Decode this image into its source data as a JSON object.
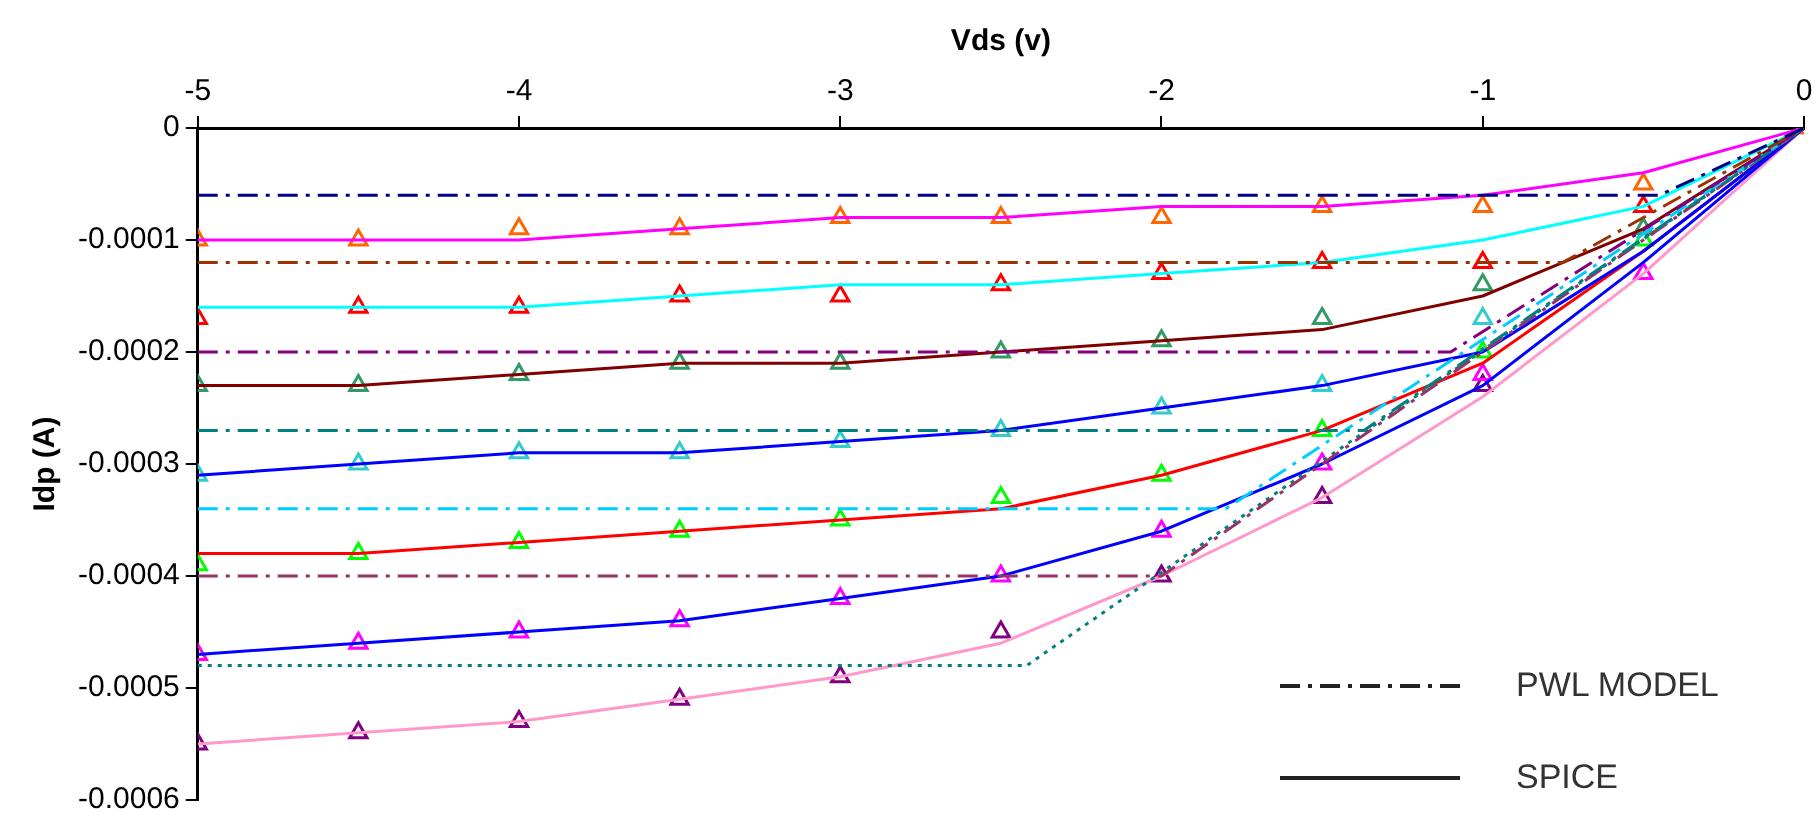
{
  "chart_data": {
    "type": "line",
    "xlabel": "Vds (v)",
    "ylabel": "Idp (A)",
    "xlim": [
      -5,
      0
    ],
    "xticks": [
      -5,
      -4,
      -3,
      -2,
      -1,
      0
    ],
    "ylim": [
      -0.0006,
      0
    ],
    "yticks": [
      0,
      -0.0001,
      -0.0002,
      -0.0003,
      -0.0004,
      -0.0005,
      -0.0006
    ],
    "grid": false,
    "annotations": [
      "PWL MODEL",
      "SPICE"
    ],
    "series": [
      {
        "type": "line",
        "line_style": "dashed",
        "color": "#000080",
        "x": [
          -5,
          -0.45,
          0
        ],
        "values": [
          -6e-05,
          -6e-05,
          0
        ]
      },
      {
        "type": "line",
        "line_style": "dashed",
        "color": "#993300",
        "x": [
          -5,
          -0.75,
          0
        ],
        "values": [
          -0.00012,
          -0.00012,
          0
        ]
      },
      {
        "type": "line",
        "line_style": "dashed",
        "color": "#800080",
        "x": [
          -5,
          -1.1,
          0
        ],
        "values": [
          -0.0002,
          -0.0002,
          0
        ]
      },
      {
        "type": "line",
        "line_style": "dashed",
        "color": "#008080",
        "x": [
          -5,
          -1.37,
          0
        ],
        "values": [
          -0.00027,
          -0.00027,
          0
        ]
      },
      {
        "type": "line",
        "line_style": "dashed",
        "color": "#00ccff",
        "x": [
          -5,
          -1.8,
          0
        ],
        "values": [
          -0.00034,
          -0.00034,
          0
        ]
      },
      {
        "type": "line",
        "line_style": "dashed",
        "color": "#993366",
        "x": [
          -5,
          -2,
          0
        ],
        "values": [
          -0.0004,
          -0.0004,
          0
        ]
      },
      {
        "type": "line",
        "line_style": "dotted",
        "color": "#008080",
        "x": [
          -5,
          -2.42,
          0
        ],
        "values": [
          -0.00048,
          -0.00048,
          0
        ]
      },
      {
        "type": "line",
        "line_style": "solid",
        "color": "#ff00ff",
        "x": [
          -5,
          -4.5,
          -4,
          -3.5,
          -3,
          -2.5,
          -2,
          -1.5,
          -1,
          -0.5,
          0
        ],
        "values": [
          -0.0001,
          -0.0001,
          -0.0001,
          -9e-05,
          -8e-05,
          -8e-05,
          -7e-05,
          -7e-05,
          -6e-05,
          -4e-05,
          0
        ]
      },
      {
        "type": "line",
        "line_style": "solid",
        "color": "#00ffff",
        "x": [
          -5,
          -4.5,
          -4,
          -3.5,
          -3,
          -2.5,
          -2,
          -1.5,
          -1,
          -0.5,
          0
        ],
        "values": [
          -0.00016,
          -0.00016,
          -0.00016,
          -0.00015,
          -0.00014,
          -0.00014,
          -0.00013,
          -0.00012,
          -0.0001,
          -7e-05,
          0
        ]
      },
      {
        "type": "line",
        "line_style": "solid",
        "color": "#800000",
        "x": [
          -5,
          -4.5,
          -4,
          -3.5,
          -3,
          -2.5,
          -2,
          -1.5,
          -1,
          -0.5,
          0
        ],
        "values": [
          -0.00023,
          -0.00023,
          -0.00022,
          -0.00021,
          -0.00021,
          -0.0002,
          -0.00019,
          -0.00018,
          -0.00015,
          -9e-05,
          0
        ]
      },
      {
        "type": "line",
        "line_style": "solid",
        "color": "#0000ff",
        "x": [
          -5,
          -4.5,
          -4,
          -3.5,
          -3,
          -2.5,
          -2,
          -1.5,
          -1,
          -0.5,
          0
        ],
        "values": [
          -0.00031,
          -0.0003,
          -0.00029,
          -0.00029,
          -0.00028,
          -0.00027,
          -0.00025,
          -0.00023,
          -0.0002,
          -0.00011,
          0
        ]
      },
      {
        "type": "line",
        "line_style": "solid",
        "color": "#ff0000",
        "x": [
          -5,
          -4.5,
          -4,
          -3.5,
          -3,
          -2.5,
          -2,
          -1.5,
          -1,
          -0.5,
          0
        ],
        "values": [
          -0.00038,
          -0.00038,
          -0.00037,
          -0.00036,
          -0.00035,
          -0.00034,
          -0.00031,
          -0.00027,
          -0.00021,
          -0.00011,
          0
        ]
      },
      {
        "type": "line",
        "line_style": "solid",
        "color": "#0000ff",
        "x": [
          -5,
          -4.5,
          -4,
          -3.5,
          -3,
          -2.5,
          -2,
          -1.5,
          -1,
          -0.5,
          0
        ],
        "values": [
          -0.00047,
          -0.00046,
          -0.00045,
          -0.00044,
          -0.00042,
          -0.0004,
          -0.00036,
          -0.0003,
          -0.00023,
          -0.00012,
          0
        ]
      },
      {
        "type": "line",
        "line_style": "solid",
        "color": "#ff99cc",
        "x": [
          -5,
          -4.5,
          -4,
          -3.5,
          -3,
          -2.5,
          -2,
          -1.5,
          -1,
          -0.5,
          0
        ],
        "values": [
          -0.00055,
          -0.00054,
          -0.00053,
          -0.00051,
          -0.00049,
          -0.00046,
          -0.0004,
          -0.00033,
          -0.00024,
          -0.00013,
          0
        ]
      },
      {
        "type": "scatter",
        "marker": "triangle",
        "color": "#ff6600",
        "x": [
          -5,
          -4.5,
          -4,
          -3.5,
          -3,
          -2.5,
          -2,
          -1.5,
          -1,
          -0.5,
          0
        ],
        "values": [
          -0.0001,
          -0.0001,
          -9e-05,
          -9e-05,
          -8e-05,
          -8e-05,
          -8e-05,
          -7e-05,
          -7e-05,
          -5e-05,
          0
        ]
      },
      {
        "type": "scatter",
        "marker": "triangle",
        "color": "#ff0000",
        "x": [
          -5,
          -4.5,
          -4,
          -3.5,
          -3,
          -2.5,
          -2,
          -1.5,
          -1,
          -0.5
        ],
        "values": [
          -0.00017,
          -0.00016,
          -0.00016,
          -0.00015,
          -0.00015,
          -0.00014,
          -0.00013,
          -0.00012,
          -0.00012,
          -7e-05
        ]
      },
      {
        "type": "scatter",
        "marker": "triangle",
        "color": "#339966",
        "x": [
          -5,
          -4.5,
          -4,
          -3.5,
          -3,
          -2.5,
          -2,
          -1.5,
          -1,
          -0.5
        ],
        "values": [
          -0.00023,
          -0.00023,
          -0.00022,
          -0.00021,
          -0.00021,
          -0.0002,
          -0.00019,
          -0.00017,
          -0.00014,
          -9e-05
        ]
      },
      {
        "type": "scatter",
        "marker": "triangle",
        "color": "#33cccc",
        "x": [
          -5,
          -4.5,
          -4,
          -3.5,
          -3,
          -2.5,
          -2,
          -1.5,
          -1
        ],
        "values": [
          -0.00031,
          -0.0003,
          -0.00029,
          -0.00029,
          -0.00028,
          -0.00027,
          -0.00025,
          -0.00023,
          -0.00017
        ]
      },
      {
        "type": "scatter",
        "marker": "triangle",
        "color": "#00ff00",
        "x": [
          -5,
          -4.5,
          -4,
          -3.5,
          -3,
          -2.5,
          -2,
          -1.5,
          -1,
          -0.5
        ],
        "values": [
          -0.00039,
          -0.00038,
          -0.00037,
          -0.00036,
          -0.00035,
          -0.00033,
          -0.00031,
          -0.00027,
          -0.0002,
          -0.0001
        ]
      },
      {
        "type": "scatter",
        "marker": "triangle",
        "color": "#ff00ff",
        "x": [
          -5,
          -4.5,
          -4,
          -3.5,
          -3,
          -2.5,
          -2,
          -1.5,
          -1,
          -0.5
        ],
        "values": [
          -0.00047,
          -0.00046,
          -0.00045,
          -0.00044,
          -0.00042,
          -0.0004,
          -0.00036,
          -0.0003,
          -0.00022,
          -0.00013
        ]
      },
      {
        "type": "scatter",
        "marker": "triangle",
        "color": "#800080",
        "x": [
          -5,
          -4.5,
          -4,
          -3.5,
          -3,
          -2.5,
          -2,
          -1.5,
          -1
        ],
        "values": [
          -0.00055,
          -0.00054,
          -0.00053,
          -0.00051,
          -0.00049,
          -0.00045,
          -0.0004,
          -0.00033,
          -0.00023
        ]
      }
    ]
  }
}
